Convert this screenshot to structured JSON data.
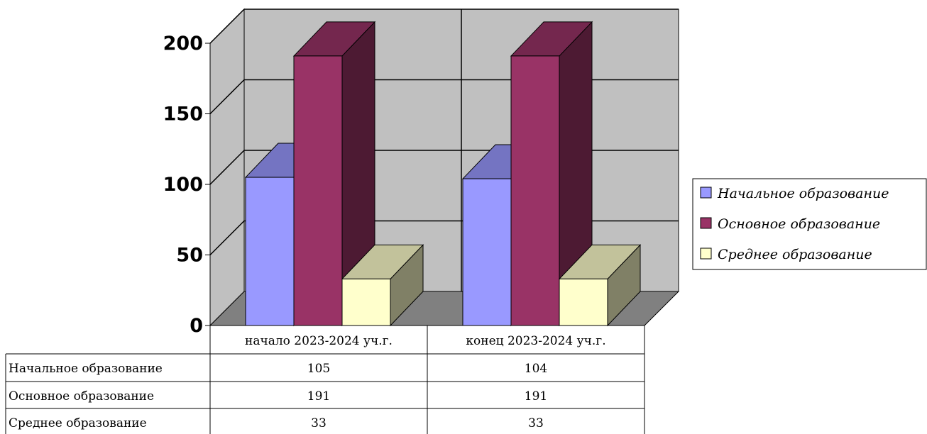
{
  "chart_data": {
    "type": "bar",
    "categories": [
      "начало 2023-2024 уч.г.",
      "конец 2023-2024 уч.г."
    ],
    "series": [
      {
        "name": "Начальное образование",
        "values": [
          105,
          104
        ],
        "color": "#9999ff",
        "value_labels": [
          "105",
          "104"
        ]
      },
      {
        "name": "Основное образование",
        "values": [
          191,
          191
        ],
        "color": "#993366",
        "value_labels": [
          "191",
          "191"
        ]
      },
      {
        "name": "Среднее образование",
        "values": [
          33,
          33
        ],
        "color": "#ffffcc",
        "value_labels": [
          "33",
          "33"
        ]
      }
    ],
    "yticks": [
      {
        "v": 0,
        "label": "0"
      },
      {
        "v": 50,
        "label": "50"
      },
      {
        "v": 100,
        "label": "100"
      },
      {
        "v": 150,
        "label": "150"
      },
      {
        "v": 200,
        "label": "200"
      }
    ],
    "ylim": [
      0,
      200
    ],
    "grid": true,
    "legend": "right",
    "data_table": true,
    "wall_color": "#c0c0c0",
    "floor_color": "#808080"
  }
}
